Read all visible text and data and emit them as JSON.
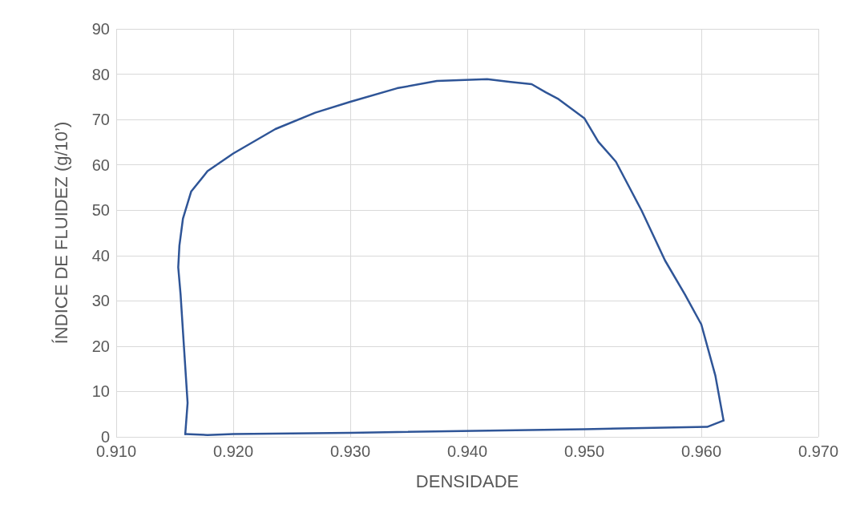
{
  "chart_data": {
    "type": "line",
    "xlabel": "DENSIDADE",
    "ylabel": "ÍNDICE DE FLUIDEZ (g/10’)",
    "series": [
      {
        "color": "#2f5597",
        "x": [
          0.9159,
          0.9161,
          0.9158,
          0.9155,
          0.9153,
          0.9154,
          0.9157,
          0.9164,
          0.9178,
          0.92,
          0.9236,
          0.927,
          0.93,
          0.934,
          0.9374,
          0.9417,
          0.9437,
          0.9455,
          0.9467,
          0.9478,
          0.95,
          0.9512,
          0.9527,
          0.9538,
          0.9549,
          0.9569,
          0.9586,
          0.96,
          0.9612,
          0.9619
        ],
        "values": [
          0.6,
          7.5,
          19.4,
          31.4,
          37.4,
          42.2,
          48.1,
          54.1,
          58.6,
          62.5,
          67.9,
          71.5,
          73.9,
          76.9,
          78.5,
          78.9,
          78.3,
          77.8,
          76.0,
          74.5,
          70.3,
          65.1,
          60.7,
          55.3,
          49.9,
          38.9,
          31.4,
          24.8,
          13.5,
          3.6
        ]
      },
      {
        "color": "#2f5597",
        "x": [
          0.9159,
          0.9178,
          0.92,
          0.93,
          0.95,
          0.9605,
          0.9619
        ],
        "values": [
          0.6,
          0.4,
          0.6,
          0.9,
          1.7,
          2.2,
          3.6
        ]
      }
    ],
    "xlim": [
      0.91,
      0.97
    ],
    "xticks": [
      {
        "value": 0.91,
        "label": "0.910"
      },
      {
        "value": 0.92,
        "label": "0.920"
      },
      {
        "value": 0.93,
        "label": "0.930"
      },
      {
        "value": 0.94,
        "label": "0.940"
      },
      {
        "value": 0.95,
        "label": "0.950"
      },
      {
        "value": 0.96,
        "label": "0.960"
      },
      {
        "value": 0.97,
        "label": "0.970"
      }
    ],
    "ylim": [
      0,
      90
    ],
    "yticks": [
      0,
      10,
      20,
      30,
      40,
      50,
      60,
      70,
      80,
      90
    ],
    "grid": true,
    "marker": "none",
    "line_style": "solid"
  }
}
